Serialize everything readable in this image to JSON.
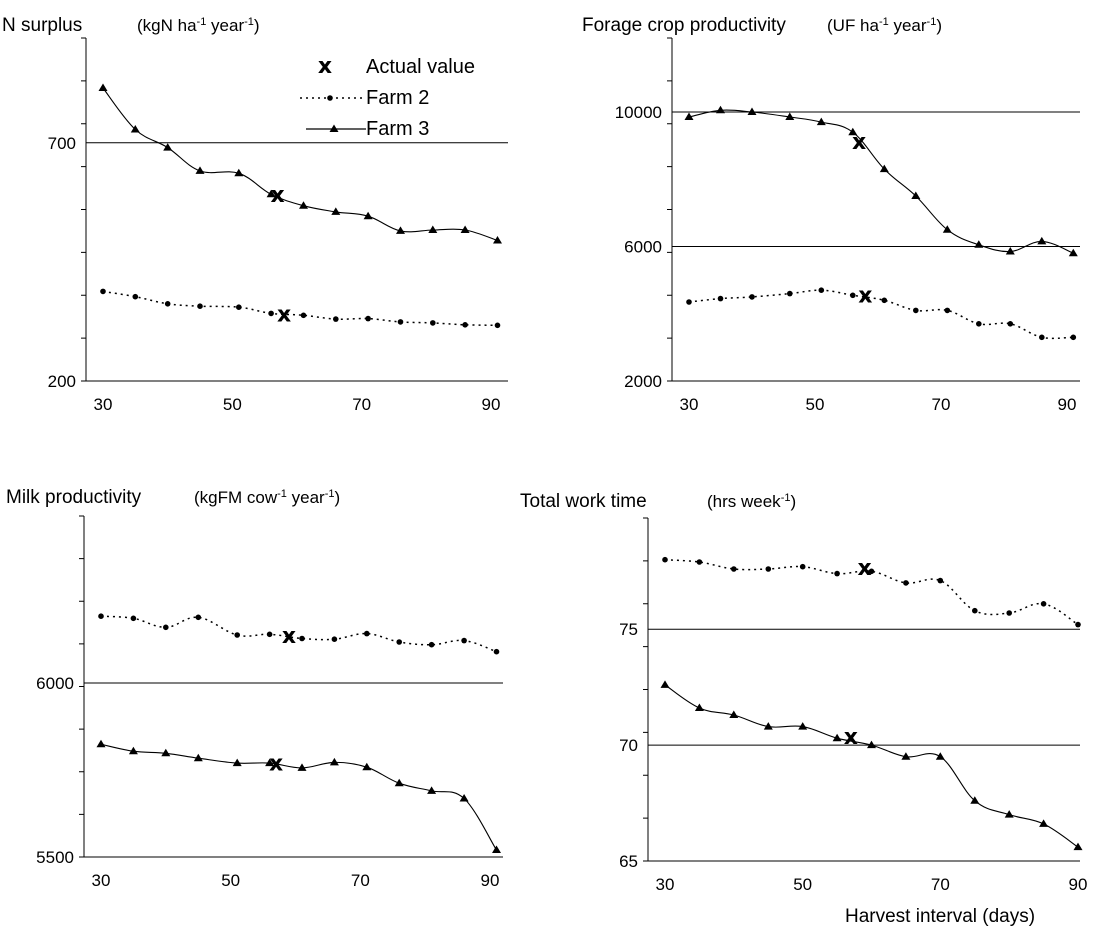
{
  "legend": {
    "actual": "Actual value",
    "farm2": "Farm 2",
    "farm3": "Farm 3",
    "actual_symbol": "x"
  },
  "xlabel_bottom": "Harvest interval (days)",
  "chart_data": [
    {
      "type": "line",
      "title": "N surplus",
      "unit": [
        "(kgN ha",
        "-1",
        " year",
        "-1",
        ")"
      ],
      "ylim": [
        200,
        920
      ],
      "yticks": [
        700,
        200
      ],
      "gridlines": [
        700
      ],
      "xlim": [
        27,
        93
      ],
      "xticks": [
        30,
        50,
        70,
        90
      ],
      "series": [
        {
          "name": "Farm 2",
          "style": "dotted",
          "x": [
            30,
            35,
            40,
            45,
            51,
            56,
            61,
            66,
            71,
            76,
            81,
            86,
            91
          ],
          "y": [
            388,
            377,
            362,
            357,
            355,
            342,
            338,
            330,
            331,
            324,
            322,
            318,
            317
          ]
        },
        {
          "name": "Farm 3",
          "style": "solid",
          "x": [
            30,
            35,
            40,
            45,
            51,
            56,
            61,
            66,
            71,
            76,
            81,
            86,
            91
          ],
          "y": [
            815,
            728,
            690,
            641,
            636,
            592,
            568,
            555,
            546,
            515,
            517,
            517,
            495
          ]
        }
      ],
      "actual": [
        {
          "x": 57,
          "y": 590
        },
        {
          "x": 58,
          "y": 340
        }
      ]
    },
    {
      "type": "line",
      "title": "Forage crop productivity",
      "unit": [
        "(UF ha",
        "-1",
        " year",
        "-1",
        ")"
      ],
      "ylim": [
        2000,
        12200
      ],
      "yticks": [
        10000,
        6000,
        2000
      ],
      "gridlines": [
        10000,
        6000
      ],
      "xlim": [
        27,
        93
      ],
      "xticks": [
        30,
        50,
        70,
        90
      ],
      "series": [
        {
          "name": "Farm 2",
          "style": "dotted",
          "x": [
            30,
            35,
            40,
            46,
            51,
            56,
            61,
            66,
            71,
            76,
            81,
            86,
            91
          ],
          "y": [
            4350,
            4450,
            4500,
            4600,
            4700,
            4550,
            4400,
            4100,
            4100,
            3700,
            3700,
            3300,
            3300
          ]
        },
        {
          "name": "Farm 3",
          "style": "solid",
          "x": [
            30,
            35,
            40,
            46,
            51,
            56,
            61,
            66,
            71,
            76,
            81,
            86,
            91
          ],
          "y": [
            9850,
            10050,
            10000,
            9850,
            9700,
            9400,
            8300,
            7500,
            6500,
            6050,
            5850,
            6150,
            5800
          ]
        }
      ],
      "actual": [
        {
          "x": 57,
          "y": 9100
        },
        {
          "x": 58,
          "y": 4550
        }
      ]
    },
    {
      "type": "line",
      "title": "Milk productivity",
      "unit": [
        "(kgFM cow",
        "-1",
        " year",
        "-1",
        ")"
      ],
      "ylim": [
        5500,
        6480
      ],
      "yticks": [
        6000,
        5500
      ],
      "gridlines": [
        6000
      ],
      "xlim": [
        27,
        93
      ],
      "xticks": [
        30,
        50,
        70,
        90
      ],
      "series": [
        {
          "name": "Farm 2",
          "style": "dotted",
          "x": [
            30,
            35,
            40,
            45,
            51,
            56,
            61,
            66,
            71,
            76,
            81,
            86,
            91
          ],
          "y": [
            6192,
            6186,
            6160,
            6189,
            6138,
            6140,
            6128,
            6126,
            6142,
            6118,
            6110,
            6122,
            6090
          ]
        },
        {
          "name": "Farm 3",
          "style": "solid",
          "x": [
            30,
            35,
            40,
            45,
            51,
            56,
            61,
            66,
            71,
            76,
            81,
            86,
            91
          ],
          "y": [
            5824,
            5804,
            5798,
            5784,
            5770,
            5770,
            5756,
            5772,
            5758,
            5712,
            5690,
            5668,
            5520
          ]
        }
      ],
      "actual": [
        {
          "x": 57,
          "y": 5768
        },
        {
          "x": 59,
          "y": 6135
        }
      ]
    },
    {
      "type": "line",
      "title": "Total work time",
      "unit": [
        "(hrs week",
        "-1",
        ")"
      ],
      "ylim": [
        65,
        79.8
      ],
      "yticks": [
        75,
        70,
        65
      ],
      "gridlines": [
        75,
        70
      ],
      "xlim": [
        27,
        93
      ],
      "xticks": [
        30,
        50,
        70,
        90
      ],
      "xlabel": "Harvest interval (days)",
      "series": [
        {
          "name": "Farm 2",
          "style": "dotted",
          "x": [
            30,
            35,
            40,
            45,
            50,
            55,
            60,
            65,
            70,
            75,
            80,
            85,
            90
          ],
          "y": [
            78.0,
            77.9,
            77.6,
            77.6,
            77.7,
            77.4,
            77.5,
            77.0,
            77.1,
            75.8,
            75.7,
            76.1,
            75.2
          ]
        },
        {
          "name": "Farm 3",
          "style": "solid",
          "x": [
            30,
            35,
            40,
            45,
            50,
            55,
            60,
            65,
            70,
            75,
            80,
            85,
            90
          ],
          "y": [
            72.6,
            71.6,
            71.3,
            70.8,
            70.8,
            70.3,
            70.0,
            69.5,
            69.5,
            67.6,
            67.0,
            66.6,
            65.6
          ]
        }
      ],
      "actual": [
        {
          "x": 57,
          "y": 70.35
        },
        {
          "x": 59,
          "y": 77.65
        }
      ]
    }
  ]
}
